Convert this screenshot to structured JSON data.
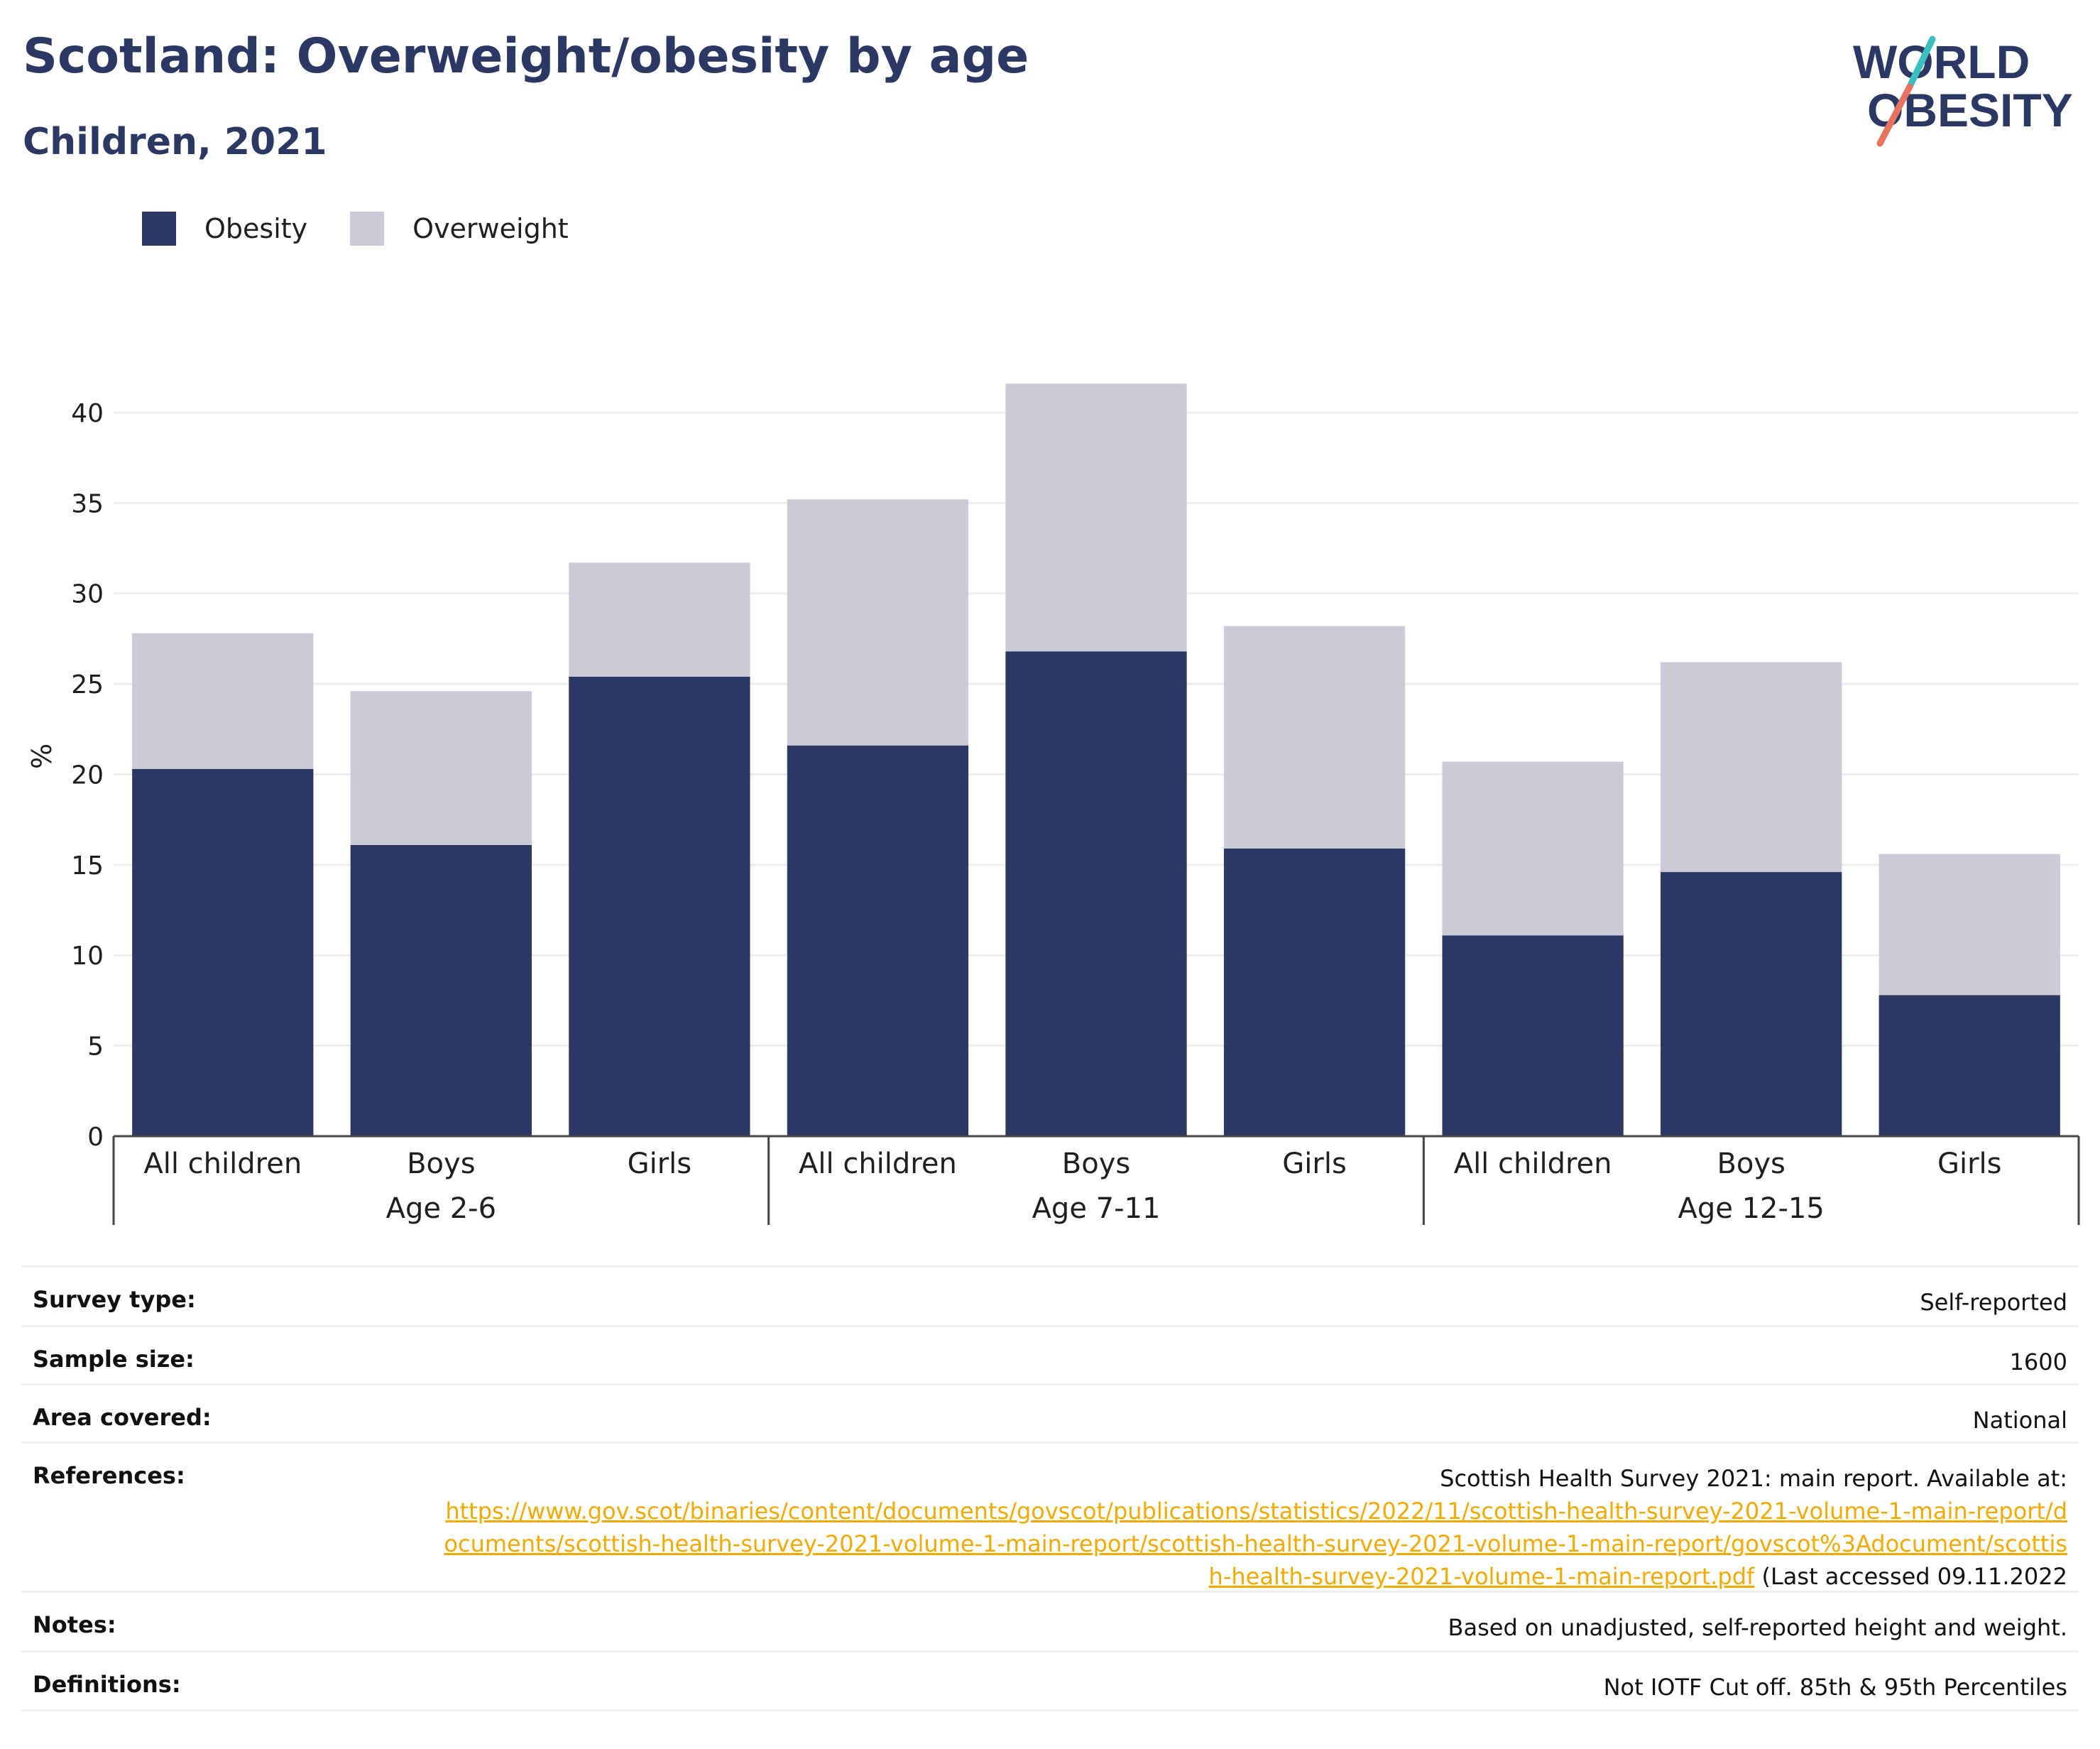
{
  "header": {
    "title": "Scotland: Overweight/obesity by age",
    "subtitle": "Children, 2021"
  },
  "logo": {
    "line1": "WORLD",
    "line2": "OBESITY",
    "icon": "world-obesity-logo"
  },
  "colors": {
    "obesity": "#2b3864",
    "overweight": "#cacbd7",
    "title": "#2b3864",
    "link": "#f2a900",
    "logo_teal": "#3bbfbf",
    "logo_coral": "#e8735f"
  },
  "legend": {
    "items": [
      {
        "label": "Obesity",
        "color": "#2b3864"
      },
      {
        "label": "Overweight",
        "color": "#cacbd7"
      }
    ]
  },
  "chart_data": {
    "type": "bar",
    "stacked": true,
    "categories": [
      "All children",
      "Boys",
      "Girls",
      "All children",
      "Boys",
      "Girls",
      "All children",
      "Boys",
      "Girls"
    ],
    "groups": [
      {
        "label": "Age 2-6",
        "count": 3
      },
      {
        "label": "Age 7-11",
        "count": 3
      },
      {
        "label": "Age 12-15",
        "count": 3
      }
    ],
    "series": [
      {
        "name": "Obesity",
        "color": "#2b3864",
        "values": [
          20.3,
          16.1,
          25.4,
          21.6,
          26.8,
          15.9,
          11.1,
          14.6,
          7.8
        ]
      },
      {
        "name": "Overweight",
        "color": "#cacbd7",
        "values": [
          7.5,
          8.5,
          6.3,
          13.6,
          14.8,
          12.3,
          9.6,
          11.6,
          7.8
        ]
      }
    ],
    "ylabel": "%",
    "ylim": [
      0,
      42
    ],
    "yticks": [
      0,
      5,
      10,
      15,
      20,
      25,
      30,
      35,
      40
    ],
    "grid": true,
    "legend_position": "top-left"
  },
  "info": {
    "survey_type": {
      "label": "Survey type:",
      "value": "Self-reported"
    },
    "sample_size": {
      "label": "Sample size:",
      "value": "1600"
    },
    "area_covered": {
      "label": "Area covered:",
      "value": "National"
    },
    "references": {
      "label": "References:",
      "text": "Scottish Health Survey 2021: main report. Available at:",
      "link": "https://www.gov.scot/binaries/content/documents/govscot/publications/statistics/2022/11/scottish-health-survey-2021-volume-1-main-report/documents/scottish-health-survey-2021-volume-1-main-report/scottish-health-survey-2021-volume-1-main-report/govscot%3Adocument/scottish-health-survey-2021-volume-1-main-report.pdf",
      "suffix": " (Last accessed 09.11.2022"
    },
    "notes": {
      "label": "Notes:",
      "value": "Based on unadjusted, self-reported height and weight."
    },
    "definitions": {
      "label": "Definitions:",
      "value": "Not IOTF Cut off. 85th & 95th Percentiles"
    }
  }
}
